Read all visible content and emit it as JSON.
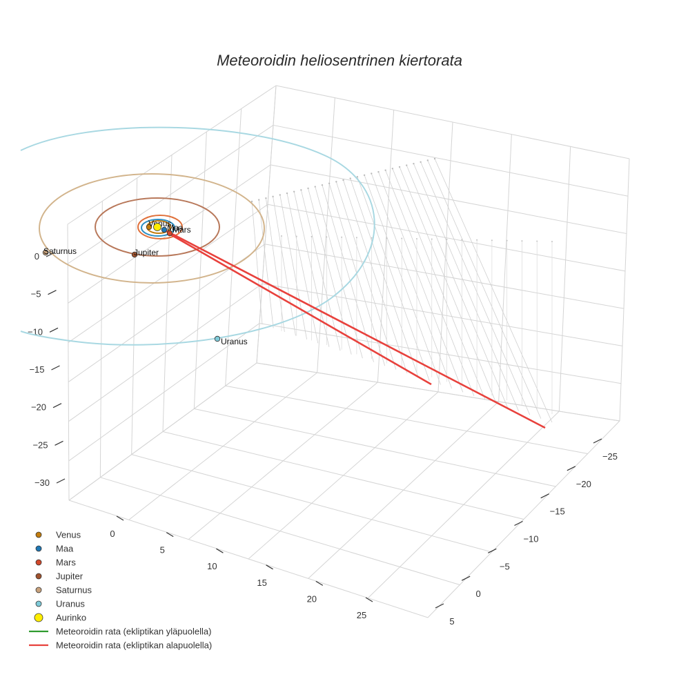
{
  "chart_data": {
    "type": "scatter3d",
    "title": "Meteoroidin heliosentrinen kiertorata",
    "axes": {
      "x_ticks": [
        "0",
        "5",
        "10",
        "15",
        "20",
        "25"
      ],
      "y_ticks": [
        "−25",
        "−20",
        "−15",
        "−10",
        "−5",
        "0",
        "5"
      ],
      "z_ticks": [
        "0",
        "−5",
        "−10",
        "−15",
        "−20",
        "−25",
        "−30"
      ]
    },
    "sun": {
      "name": "Aurinko",
      "color": "#ffee00"
    },
    "planets": [
      {
        "name": "Venus",
        "color": "#c27c0e",
        "orbit_au": 0.72
      },
      {
        "name": "Maa",
        "color": "#1f77b4",
        "orbit_au": 1.0
      },
      {
        "name": "Mars",
        "color": "#d2482a",
        "orbit_au": 1.52
      },
      {
        "name": "Jupiter",
        "color": "#a0522d",
        "orbit_au": 5.2
      },
      {
        "name": "Saturnus",
        "color": "#c8a27c",
        "orbit_au": 9.54
      },
      {
        "name": "Uranus",
        "color": "#7ecad8",
        "orbit_au": 19.2
      }
    ],
    "orbit_colors": {
      "Venus": "#c27c0e",
      "Maa": "#2c8fc4",
      "Mars": "#e0703a",
      "Jupiter": "#b8785a",
      "Saturnus": "#d2b48c",
      "Uranus": "#a8d8e2"
    },
    "meteoroid": {
      "color": "#e8413c",
      "path_note": "two nearly straight legs leaving the inner solar system below the ecliptic"
    },
    "legend": [
      {
        "label": "Venus",
        "kind": "marker",
        "color": "#c27c0e"
      },
      {
        "label": "Maa",
        "kind": "marker",
        "color": "#1f77b4"
      },
      {
        "label": "Mars",
        "kind": "marker",
        "color": "#d2482a"
      },
      {
        "label": "Jupiter",
        "kind": "marker",
        "color": "#a0522d"
      },
      {
        "label": "Saturnus",
        "kind": "marker",
        "color": "#c8a27c"
      },
      {
        "label": "Uranus",
        "kind": "marker",
        "color": "#7ecad8"
      },
      {
        "label": "Aurinko",
        "kind": "sun",
        "color": "#ffee00"
      },
      {
        "label": "Meteoroidin rata (ekliptikan yläpuolella)",
        "kind": "line",
        "color": "#2e9a2e"
      },
      {
        "label": "Meteoroidin rata (ekliptikan alapuolella)",
        "kind": "line",
        "color": "#e8413c"
      }
    ]
  }
}
